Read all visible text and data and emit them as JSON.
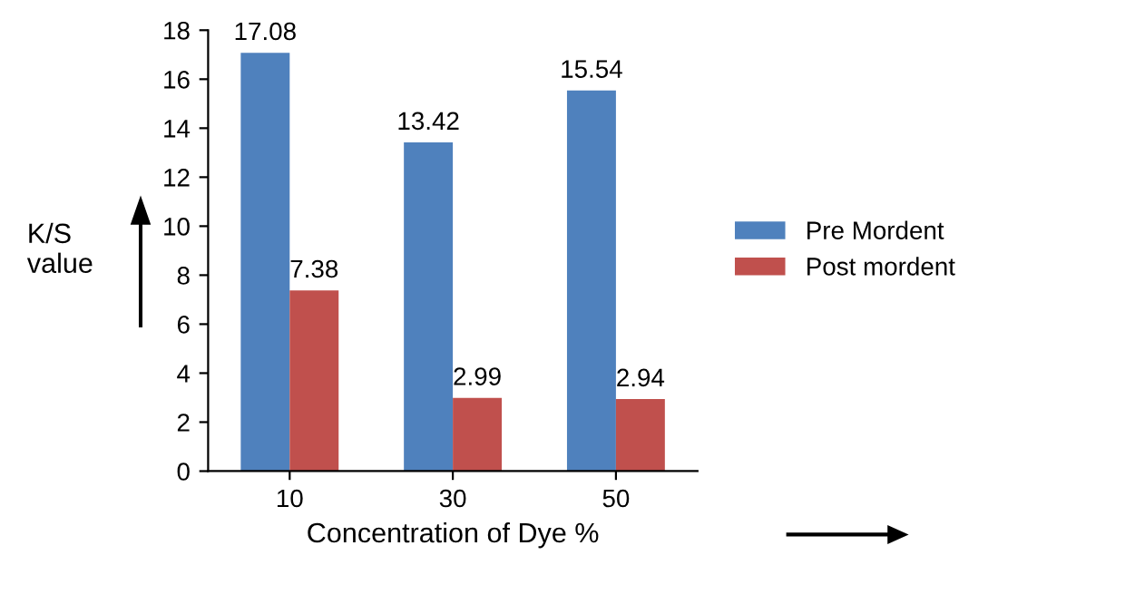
{
  "chart_data": {
    "type": "bar",
    "categories": [
      "10",
      "30",
      "50"
    ],
    "series": [
      {
        "name": "Pre Mordent",
        "color": "#4f81bd",
        "values": [
          17.08,
          13.42,
          15.54
        ]
      },
      {
        "name": "Post mordent",
        "color": "#c0504d",
        "values": [
          7.38,
          2.99,
          2.94
        ]
      }
    ],
    "xlabel": "Concentration of Dye %",
    "ylabel": "K/S\nvalue",
    "ylim": [
      0,
      18
    ],
    "yticks": [
      0,
      2,
      4,
      6,
      8,
      10,
      12,
      14,
      16,
      18
    ],
    "data_labels": true,
    "grid": false,
    "legend": "right"
  }
}
